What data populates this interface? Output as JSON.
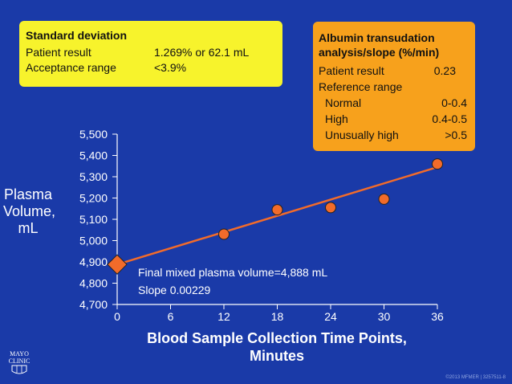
{
  "sd_box": {
    "title": "Standard deviation",
    "rows": [
      {
        "label": "Patient result",
        "value": "1.269% or 62.1 mL"
      },
      {
        "label": "Acceptance range",
        "value": "<3.9%"
      }
    ]
  },
  "albumin_box": {
    "title_line1": "Albumin transudation",
    "title_line2": "analysis/slope (%/min)",
    "patient_label": "Patient result",
    "patient_value": "0.23",
    "reference_label": "Reference range",
    "ranges": [
      {
        "label": "Normal",
        "value": "0-0.4"
      },
      {
        "label": "High",
        "value": "0.4-0.5"
      },
      {
        "label": "Unusually high",
        "value": ">0.5"
      }
    ]
  },
  "annotation": {
    "line1": "Final mixed plasma volume=4,888 mL",
    "line2": "Slope 0.00229"
  },
  "logo": {
    "line1": "MAYO",
    "line2": "CLINIC"
  },
  "copyright": "©2013 MFMER | 3257511-8",
  "chart_data": {
    "type": "scatter",
    "title": "",
    "ylabel_lines": [
      "Plasma",
      "Volume,",
      "mL"
    ],
    "xlabel_lines": [
      "Blood Sample Collection Time Points,",
      "Minutes"
    ],
    "xlim": [
      0,
      36
    ],
    "ylim": [
      4700,
      5500
    ],
    "x_ticks": [
      0,
      6,
      12,
      18,
      24,
      30,
      36
    ],
    "y_ticks": [
      4700,
      4800,
      4900,
      5000,
      5100,
      5200,
      5300,
      5400,
      5500
    ],
    "y_tick_labels": [
      "4,700",
      "4,800",
      "4,900",
      "5,000",
      "5,100",
      "5,200",
      "5,300",
      "5,400",
      "5,500"
    ],
    "points": [
      {
        "x": 12,
        "y": 5030
      },
      {
        "x": 18,
        "y": 5145
      },
      {
        "x": 24,
        "y": 5155
      },
      {
        "x": 30,
        "y": 5195
      },
      {
        "x": 36,
        "y": 5360
      }
    ],
    "intercept": {
      "x": 0,
      "y": 4888
    },
    "fit_line": {
      "x0": 0,
      "y0": 4888,
      "x1": 36,
      "y1": 5345
    },
    "colors": {
      "points": "#f26b2a",
      "line": "#f26b2a",
      "axis": "#ffffff",
      "background": "#1a3aa8"
    }
  }
}
